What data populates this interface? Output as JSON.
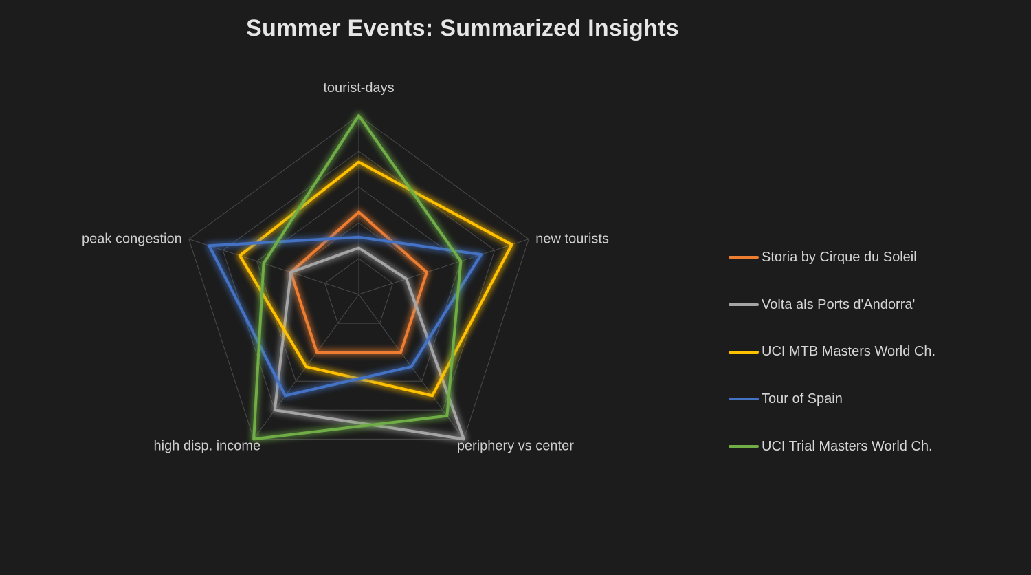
{
  "chart_data": {
    "type": "radar",
    "title": "Summer Events: Summarized Insights",
    "axes": [
      "tourist-days",
      "new tourists",
      "periphery vs center",
      "high disp. income",
      "peak congestion"
    ],
    "rlim": [
      0,
      5
    ],
    "rings": 5,
    "grid": true,
    "legend_position": "right",
    "series": [
      {
        "name": "Storia by Cirque du Soleil",
        "color": "#ED7D31",
        "values": [
          2.3,
          2.0,
          2.0,
          2.0,
          2.0
        ]
      },
      {
        "name": "Volta als Ports d'Andorra'",
        "color": "#A5A5A5",
        "values": [
          1.3,
          1.4,
          5.0,
          4.0,
          2.0
        ]
      },
      {
        "name": "UCI MTB Masters World Ch.",
        "color": "#FFC000",
        "values": [
          3.7,
          4.5,
          3.5,
          2.5,
          3.5
        ]
      },
      {
        "name": "Tour of Spain",
        "color": "#4472C4",
        "values": [
          1.6,
          3.6,
          2.5,
          3.5,
          4.4
        ]
      },
      {
        "name": "UCI Trial Masters World Ch.",
        "color": "#70AD47",
        "values": [
          5.0,
          3.0,
          4.2,
          5.0,
          2.8
        ]
      }
    ]
  }
}
